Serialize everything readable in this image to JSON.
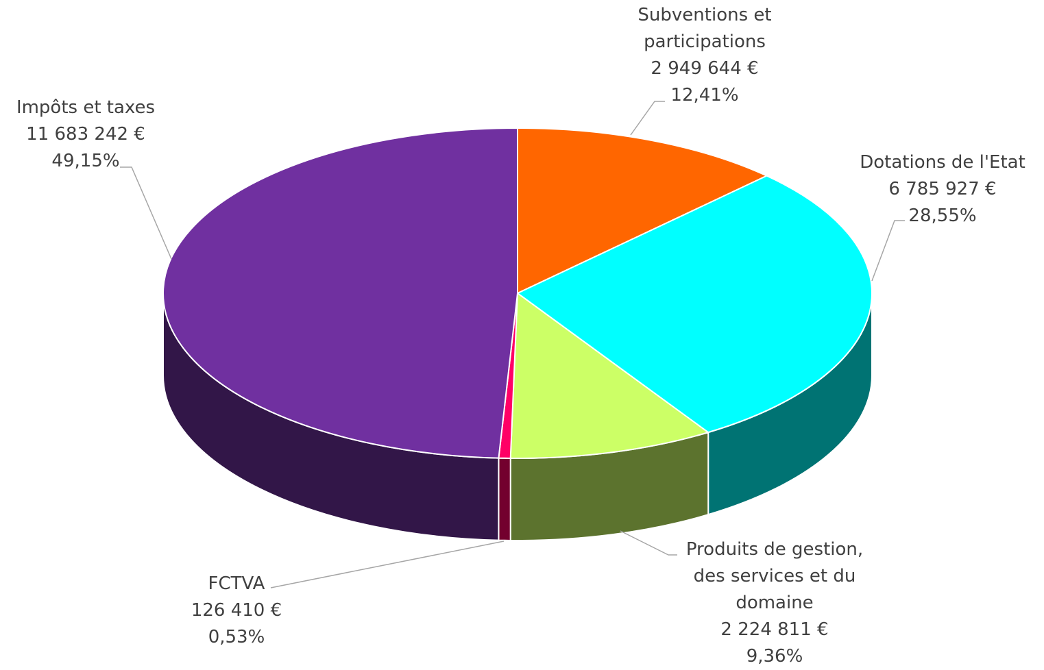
{
  "chart_data": {
    "type": "pie3d",
    "categories": [
      "Subventions et\nparticipations",
      "Dotations de l'Etat",
      "Produits de gestion,\ndes services et du\ndomaine",
      "FCTVA",
      "Impôts et taxes"
    ],
    "values": [
      2949644,
      6785927,
      2224811,
      126410,
      11683242
    ],
    "value_labels": [
      "2 949 644 €",
      "6 785 927 €",
      "2 224 811 €",
      "126 410 €",
      "11 683 242 €"
    ],
    "percents": [
      12.41,
      28.55,
      9.36,
      0.53,
      49.15
    ],
    "percent_labels": [
      "12,41%",
      "28,55%",
      "9,36%",
      "0,53%",
      "49,15%"
    ],
    "colors": [
      "#ff6600",
      "#00ffff",
      "#ccff66",
      "#ff0066",
      "#7030a0"
    ]
  }
}
